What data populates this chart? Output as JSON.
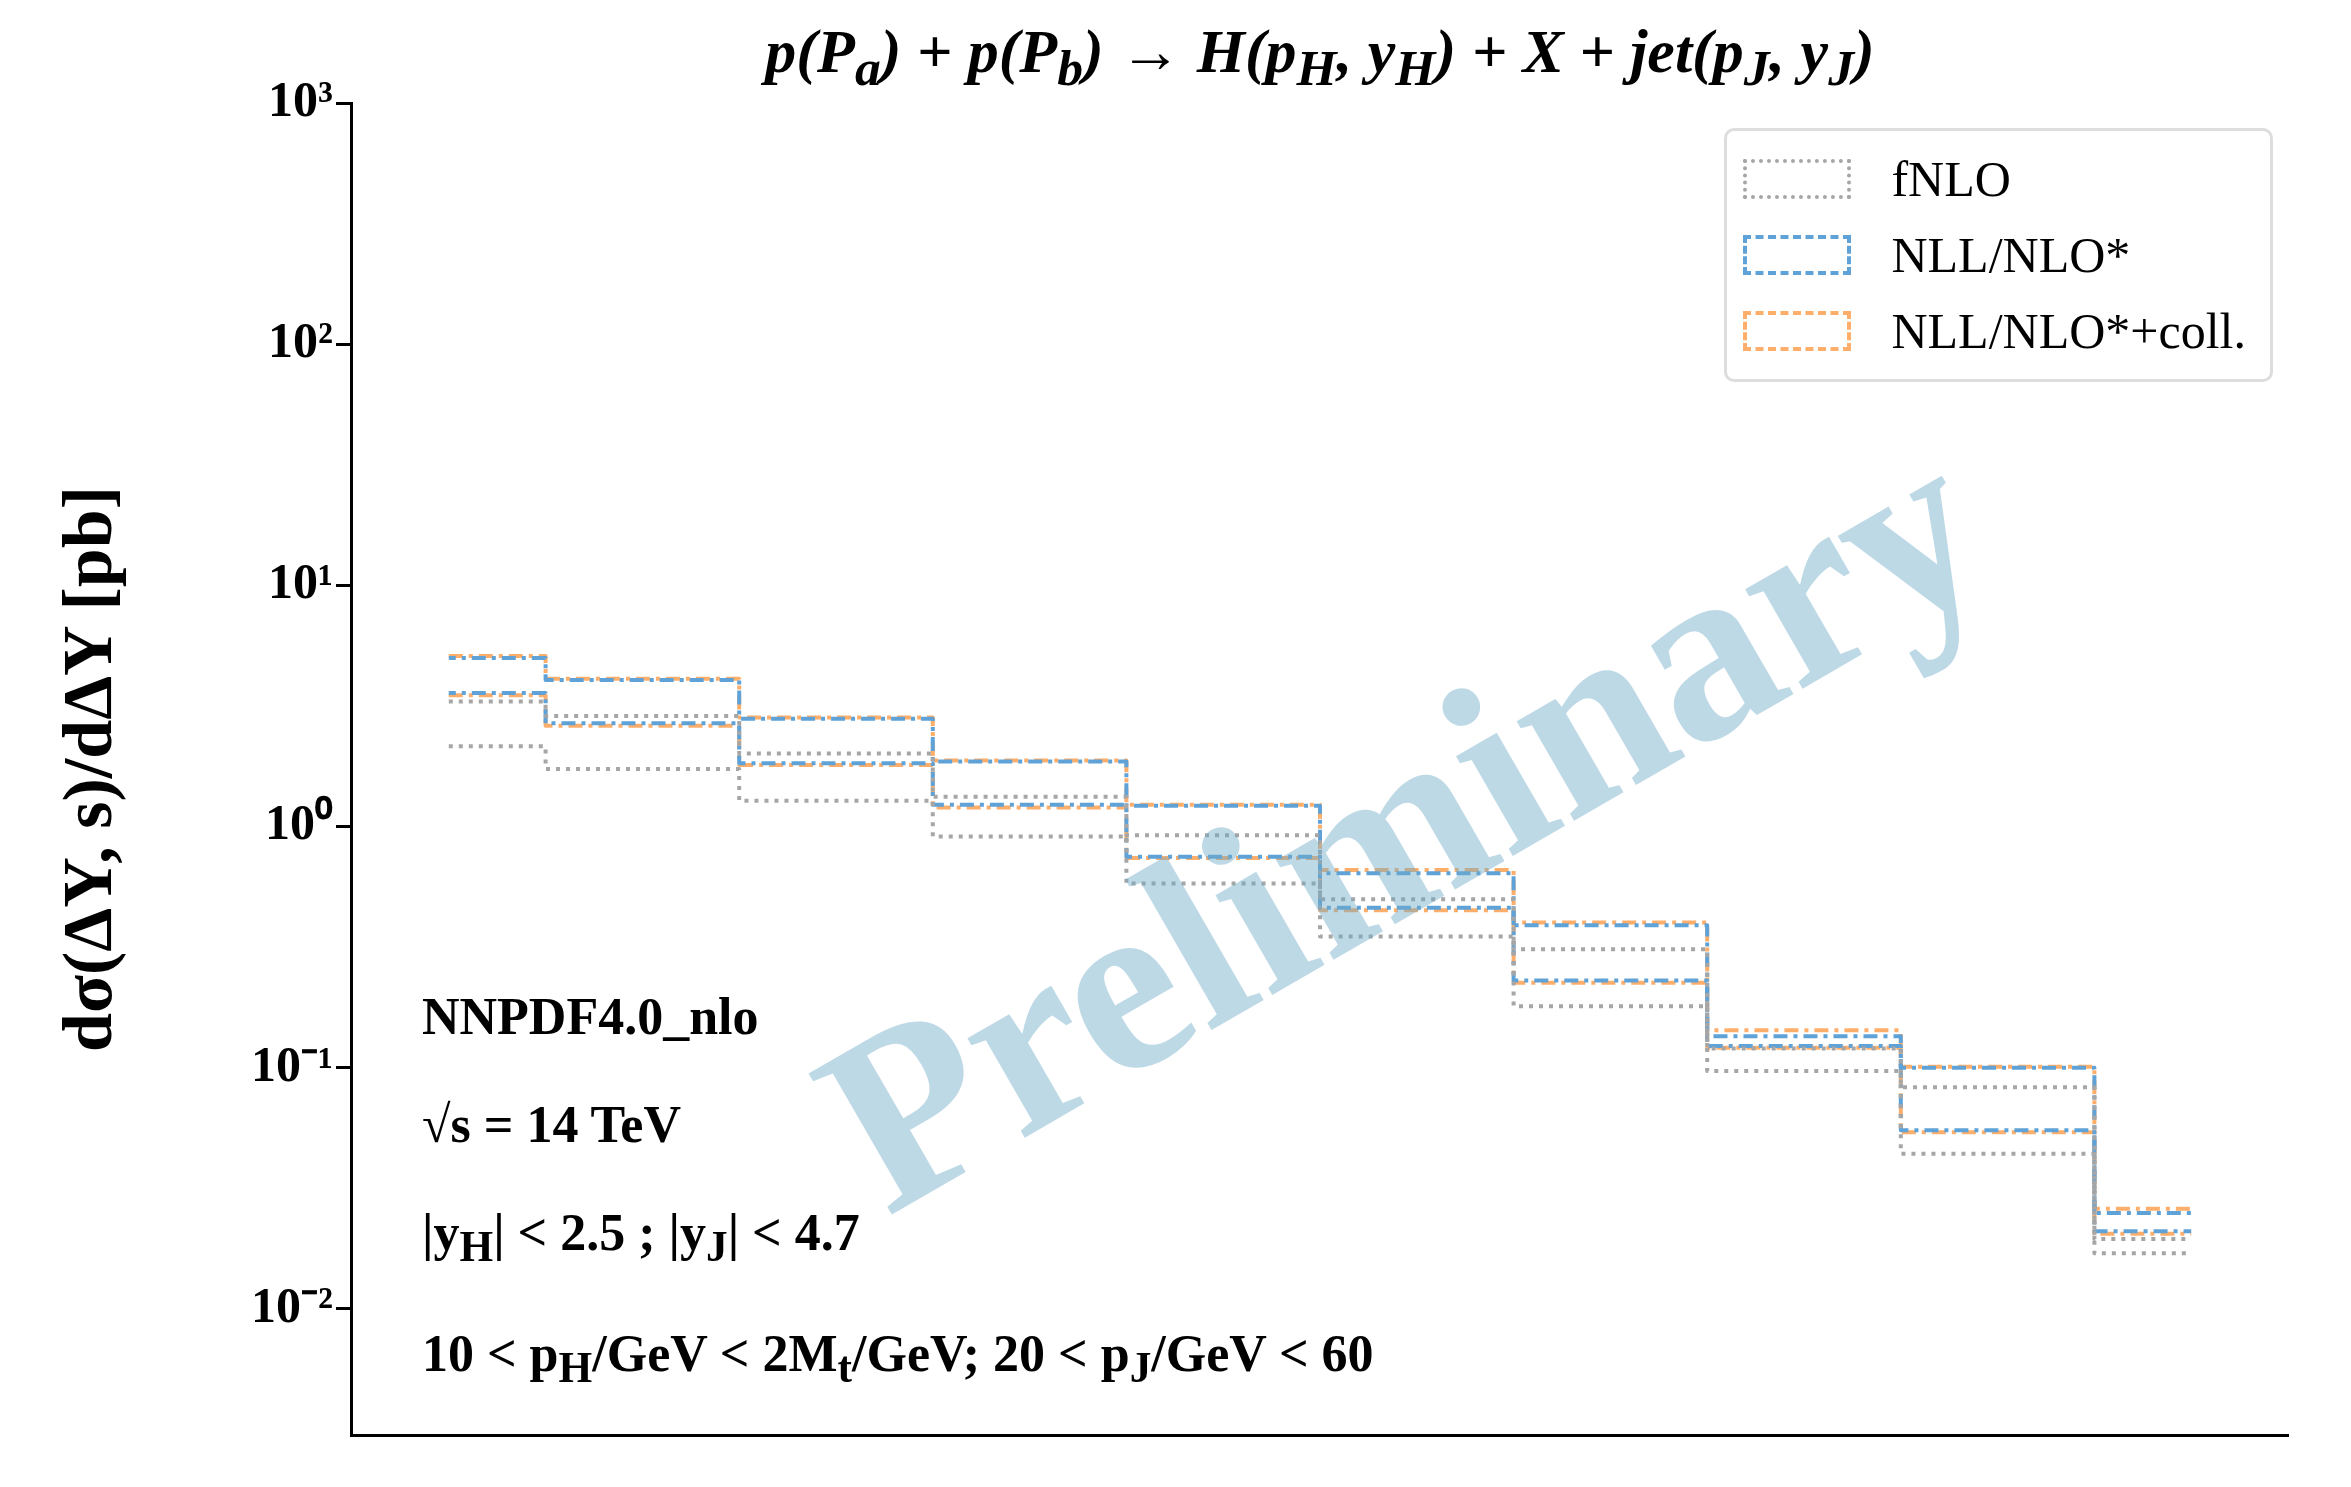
{
  "chart_data": {
    "type": "step",
    "title": "p(P$_{a}$) + p(P$_{b}$) → H(p$_{H}$, y$_{H}$) + X + jet(p$_{J}$, y$_{J}$)",
    "ylabel": "dσ(ΔY, s)/dΔY [pb]",
    "categories": [
      null,
      null,
      null,
      null,
      null,
      null,
      null,
      null,
      null,
      null
    ],
    "series": [
      {
        "name": "fNLO",
        "color": "#a6a6a6",
        "line_style": "dotted",
        "values": [
          3.3,
          2.87,
          2.01,
          1.33,
          0.92,
          0.5,
          0.31,
          0.12,
          0.083,
          0.0195
        ]
      },
      {
        "color": "#a6a6a6",
        "line_style": "dotted",
        "values": [
          2.15,
          1.73,
          1.28,
          0.91,
          0.58,
          0.35,
          0.18,
          0.097,
          0.044,
          0.017
        ]
      },
      {
        "name": "NLL/NLO*",
        "color": "#5fa2d8",
        "line_style": "dashed",
        "values": [
          5.0,
          4.05,
          2.8,
          1.86,
          1.22,
          0.64,
          0.39,
          0.135,
          0.1,
          0.025
        ]
      },
      {
        "color": "#5fa2d8",
        "line_style": "dashed",
        "values": [
          3.58,
          2.68,
          1.83,
          1.23,
          0.75,
          0.46,
          0.23,
          0.123,
          0.055,
          0.021
        ]
      },
      {
        "name": "NLL/NLO*+coll.",
        "color": "#fdae6b",
        "line_style": "dashed",
        "values": [
          5.1,
          4.1,
          2.83,
          1.88,
          1.23,
          0.66,
          0.4,
          0.143,
          0.101,
          0.026
        ]
      },
      {
        "color": "#fdae6b",
        "line_style": "dashed",
        "values": [
          3.5,
          2.62,
          1.8,
          1.2,
          0.74,
          0.45,
          0.225,
          0.121,
          0.054,
          0.0205
        ]
      }
    ],
    "log": "y",
    "ylim": [
      0.003,
      1000
    ],
    "yticks": [
      {
        "value": 0.01,
        "label": "10⁻²"
      },
      {
        "value": 0.1,
        "label": "10⁻¹"
      },
      {
        "value": 1,
        "label": "10⁰"
      },
      {
        "value": 10,
        "label": "10¹"
      },
      {
        "value": 100,
        "label": "10²"
      },
      {
        "value": 1000,
        "label": "10³"
      }
    ],
    "tick_labels": "y",
    "legend": "top right",
    "marker": "none",
    "annotations": [
      "NNPDF4.0_nlo",
      "√s = 14 TeV",
      "|y$_{H}$| < 2.5 ;  |y$_{J}$| < 4.7",
      "10 < p$_{H}$/GeV < 2M$_{t}$/GeV; 20 < p$_{J}$/GeV < 60",
      "Preliminary"
    ]
  }
}
